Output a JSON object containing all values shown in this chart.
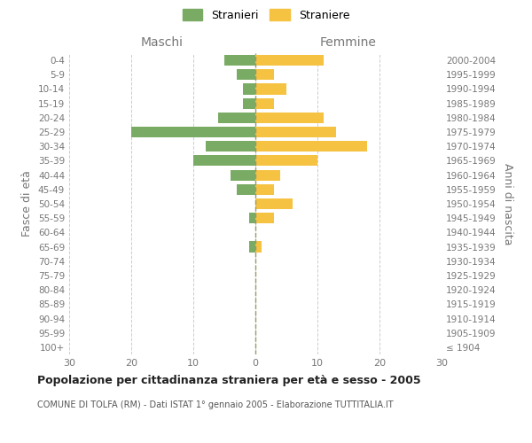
{
  "age_groups": [
    "100+",
    "95-99",
    "90-94",
    "85-89",
    "80-84",
    "75-79",
    "70-74",
    "65-69",
    "60-64",
    "55-59",
    "50-54",
    "45-49",
    "40-44",
    "35-39",
    "30-34",
    "25-29",
    "20-24",
    "15-19",
    "10-14",
    "5-9",
    "0-4"
  ],
  "birth_years": [
    "≤ 1904",
    "1905-1909",
    "1910-1914",
    "1915-1919",
    "1920-1924",
    "1925-1929",
    "1930-1934",
    "1935-1939",
    "1940-1944",
    "1945-1949",
    "1950-1954",
    "1955-1959",
    "1960-1964",
    "1965-1969",
    "1970-1974",
    "1975-1979",
    "1980-1984",
    "1985-1989",
    "1990-1994",
    "1995-1999",
    "2000-2004"
  ],
  "males": [
    0,
    0,
    0,
    0,
    0,
    0,
    0,
    1,
    0,
    1,
    0,
    3,
    4,
    10,
    8,
    20,
    6,
    2,
    2,
    3,
    5
  ],
  "females": [
    0,
    0,
    0,
    0,
    0,
    0,
    0,
    1,
    0,
    3,
    6,
    3,
    4,
    10,
    18,
    13,
    11,
    3,
    5,
    3,
    11
  ],
  "male_color": "#7aab65",
  "female_color": "#f5c242",
  "center_line_color": "#999966",
  "grid_color": "#cccccc",
  "title": "Popolazione per cittadinanza straniera per età e sesso - 2005",
  "subtitle": "COMUNE DI TOLFA (RM) - Dati ISTAT 1° gennaio 2005 - Elaborazione TUTTITALIA.IT",
  "ylabel_left": "Fasce di età",
  "ylabel_right": "Anni di nascita",
  "xlabel_left": "Maschi",
  "xlabel_right": "Femmine",
  "legend_stranieri": "Stranieri",
  "legend_straniere": "Straniere",
  "xlim": 30,
  "background_color": "#ffffff"
}
